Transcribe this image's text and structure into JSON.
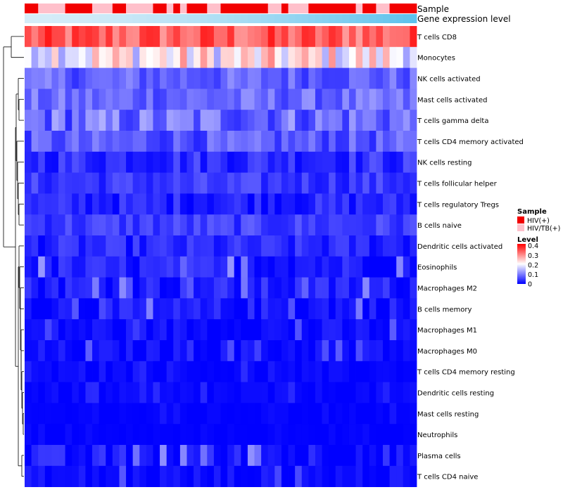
{
  "chart_data": {
    "type": "heatmap",
    "title": "",
    "row_labels": [
      "T cells CD8",
      "Monocytes",
      "NK cells activated",
      "Mast cells activated",
      "T cells gamma delta",
      "T cells CD4 memory activated",
      "NK cells resting",
      "T cells follicular helper",
      "T cells regulatory  Tregs",
      "B cells naive",
      "Dendritic cells activated",
      "Eosinophils",
      "Macrophages M2",
      "B cells memory",
      "Macrophages M1",
      "Macrophages M0",
      "T cells CD4 memory resting",
      "Dendritic cells resting",
      "Mast cells resting",
      "Neutrophils",
      "Plasma cells",
      "T cells CD4 naive"
    ],
    "annotation_tracks": [
      {
        "name": "Sample"
      },
      {
        "name": "Gene expression level"
      }
    ],
    "sample_groups": "HHTTTTHHHHTTTHHTTTTHHTHTHHHTTHHHHHHHTTHTTTHHHHHHHTHHTTHHHH",
    "legends": {
      "sample": {
        "title": "Sample",
        "entries": [
          {
            "label": "HIV(+)",
            "color": "#f20000"
          },
          {
            "label": "HIV/TB(+)",
            "color": "#ffc0cb"
          }
        ]
      },
      "level": {
        "title": "Level",
        "ticks": [
          "0.4",
          "0.3",
          "0.2",
          "0.1",
          "0"
        ],
        "tick_values": [
          0.4,
          0.3,
          0.2,
          0.1,
          0
        ],
        "range": [
          0,
          0.42
        ]
      }
    },
    "row_means": [
      0.34,
      0.22,
      0.08,
      0.085,
      0.09,
      0.07,
      0.04,
      0.045,
      0.03,
      0.05,
      0.03,
      0.025,
      0.025,
      0.015,
      0.01,
      0.01,
      0.004,
      0.004,
      0.002,
      0.001,
      0.015,
      0.008
    ],
    "row_spread": [
      0.06,
      0.09,
      0.04,
      0.04,
      0.06,
      0.04,
      0.035,
      0.03,
      0.03,
      0.03,
      0.03,
      0.03,
      0.03,
      0.03,
      0.02,
      0.02,
      0.01,
      0.01,
      0.005,
      0.003,
      0.035,
      0.02
    ],
    "n_columns": 58,
    "colors": {
      "low": "#0000ff",
      "mid": "#ffffff",
      "high": "#ff0000",
      "tree": "#000000",
      "level_bar_light": "#d5ecf8",
      "level_bar_dark": "#5ec2ec"
    }
  }
}
